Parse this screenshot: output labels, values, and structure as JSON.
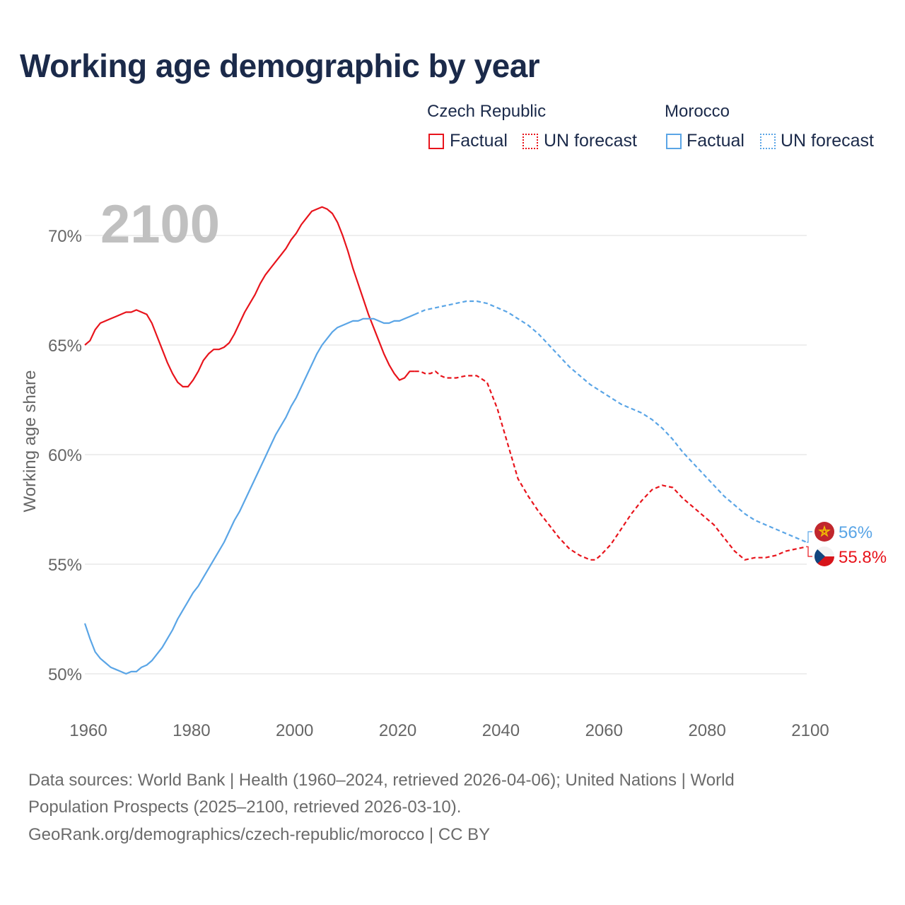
{
  "title": "Working age demographic by year",
  "legend": {
    "groups": [
      {
        "name": "Czech Republic",
        "color": "#e8141c",
        "factual_label": "Factual",
        "forecast_label": "UN forecast"
      },
      {
        "name": "Morocco",
        "color": "#5aa5e6",
        "factual_label": "Factual",
        "forecast_label": "UN forecast"
      }
    ]
  },
  "colors": {
    "czech": "#e8141c",
    "morocco": "#5aa5e6",
    "grid": "#e4e4e4",
    "tick": "#666666",
    "year_overlay": "#c0c0c0"
  },
  "chart_data": {
    "type": "line",
    "title": "Working age demographic by year",
    "xlabel": "",
    "ylabel": "Working age share",
    "xlim": [
      1960,
      2100
    ],
    "ylim": [
      48.5,
      71.5
    ],
    "x_ticks": [
      1960,
      1980,
      2000,
      2020,
      2040,
      2060,
      2080,
      2100
    ],
    "x_tick_labels": [
      "1960",
      "1980",
      "2000",
      "2020",
      "2040",
      "2060",
      "2080",
      "2100"
    ],
    "y_ticks": [
      50,
      55,
      60,
      65,
      70
    ],
    "y_tick_labels": [
      "50%",
      "55%",
      "60%",
      "65%",
      "70%"
    ],
    "year_overlay": "2100",
    "series": [
      {
        "name": "Czech Republic",
        "color": "#e8141c",
        "factual": {
          "x": [
            1960,
            1961,
            1962,
            1963,
            1964,
            1965,
            1966,
            1967,
            1968,
            1969,
            1970,
            1971,
            1972,
            1973,
            1974,
            1975,
            1976,
            1977,
            1978,
            1979,
            1980,
            1981,
            1982,
            1983,
            1984,
            1985,
            1986,
            1987,
            1988,
            1989,
            1990,
            1991,
            1992,
            1993,
            1994,
            1995,
            1996,
            1997,
            1998,
            1999,
            2000,
            2001,
            2002,
            2003,
            2004,
            2005,
            2006,
            2007,
            2008,
            2009,
            2010,
            2011,
            2012,
            2013,
            2014,
            2015,
            2016,
            2017,
            2018,
            2019,
            2020,
            2021,
            2022,
            2023,
            2024
          ],
          "y": [
            65.0,
            65.2,
            65.7,
            66.0,
            66.1,
            66.2,
            66.3,
            66.4,
            66.5,
            66.5,
            66.6,
            66.5,
            66.4,
            66.0,
            65.4,
            64.8,
            64.2,
            63.7,
            63.3,
            63.1,
            63.1,
            63.4,
            63.8,
            64.3,
            64.6,
            64.8,
            64.8,
            64.9,
            65.1,
            65.5,
            66.0,
            66.5,
            66.9,
            67.3,
            67.8,
            68.2,
            68.5,
            68.8,
            69.1,
            69.4,
            69.8,
            70.1,
            70.5,
            70.8,
            71.1,
            71.2,
            71.3,
            71.2,
            71.0,
            70.6,
            70.0,
            69.3,
            68.5,
            67.8,
            67.1,
            66.4,
            65.8,
            65.2,
            64.6,
            64.1,
            63.7,
            63.4,
            63.5,
            63.8,
            63.8
          ]
        },
        "forecast": {
          "x": [
            2024,
            2025,
            2026,
            2027,
            2028,
            2029,
            2030,
            2032,
            2034,
            2036,
            2038,
            2040,
            2042,
            2044,
            2046,
            2048,
            2050,
            2052,
            2054,
            2056,
            2058,
            2059,
            2060,
            2062,
            2064,
            2066,
            2068,
            2070,
            2072,
            2074,
            2076,
            2078,
            2080,
            2082,
            2084,
            2086,
            2088,
            2090,
            2092,
            2094,
            2096,
            2098,
            2100
          ],
          "y": [
            63.8,
            63.8,
            63.7,
            63.7,
            63.8,
            63.6,
            63.5,
            63.5,
            63.6,
            63.6,
            63.3,
            62.1,
            60.5,
            58.9,
            58.1,
            57.4,
            56.8,
            56.2,
            55.7,
            55.4,
            55.2,
            55.2,
            55.4,
            55.9,
            56.6,
            57.3,
            57.9,
            58.4,
            58.6,
            58.5,
            58.0,
            57.6,
            57.2,
            56.8,
            56.2,
            55.6,
            55.2,
            55.3,
            55.3,
            55.4,
            55.6,
            55.7,
            55.8
          ]
        },
        "end_label": "55.8%",
        "end_value": 55.8
      },
      {
        "name": "Morocco",
        "color": "#5aa5e6",
        "factual": {
          "x": [
            1960,
            1961,
            1962,
            1963,
            1964,
            1965,
            1966,
            1967,
            1968,
            1969,
            1970,
            1971,
            1972,
            1973,
            1974,
            1975,
            1976,
            1977,
            1978,
            1979,
            1980,
            1981,
            1982,
            1983,
            1984,
            1985,
            1986,
            1987,
            1988,
            1989,
            1990,
            1991,
            1992,
            1993,
            1994,
            1995,
            1996,
            1997,
            1998,
            1999,
            2000,
            2001,
            2002,
            2003,
            2004,
            2005,
            2006,
            2007,
            2008,
            2009,
            2010,
            2011,
            2012,
            2013,
            2014,
            2015,
            2016,
            2017,
            2018,
            2019,
            2020,
            2021,
            2022,
            2023,
            2024
          ],
          "y": [
            52.3,
            51.6,
            51.0,
            50.7,
            50.5,
            50.3,
            50.2,
            50.1,
            50.0,
            50.1,
            50.1,
            50.3,
            50.4,
            50.6,
            50.9,
            51.2,
            51.6,
            52.0,
            52.5,
            52.9,
            53.3,
            53.7,
            54.0,
            54.4,
            54.8,
            55.2,
            55.6,
            56.0,
            56.5,
            57.0,
            57.4,
            57.9,
            58.4,
            58.9,
            59.4,
            59.9,
            60.4,
            60.9,
            61.3,
            61.7,
            62.2,
            62.6,
            63.1,
            63.6,
            64.1,
            64.6,
            65.0,
            65.3,
            65.6,
            65.8,
            65.9,
            66.0,
            66.1,
            66.1,
            66.2,
            66.2,
            66.2,
            66.1,
            66.0,
            66.0,
            66.1,
            66.1,
            66.2,
            66.3,
            66.4
          ]
        },
        "forecast": {
          "x": [
            2024,
            2026,
            2028,
            2030,
            2032,
            2034,
            2036,
            2038,
            2040,
            2042,
            2044,
            2046,
            2048,
            2050,
            2052,
            2054,
            2056,
            2058,
            2060,
            2062,
            2064,
            2066,
            2068,
            2070,
            2072,
            2074,
            2076,
            2078,
            2080,
            2082,
            2084,
            2086,
            2088,
            2090,
            2092,
            2094,
            2096,
            2098,
            2100
          ],
          "y": [
            66.4,
            66.6,
            66.7,
            66.8,
            66.9,
            67.0,
            67.0,
            66.9,
            66.7,
            66.5,
            66.2,
            65.9,
            65.5,
            65.0,
            64.5,
            64.0,
            63.6,
            63.2,
            62.9,
            62.6,
            62.3,
            62.1,
            61.9,
            61.6,
            61.2,
            60.7,
            60.1,
            59.6,
            59.1,
            58.6,
            58.1,
            57.7,
            57.3,
            57.0,
            56.8,
            56.6,
            56.4,
            56.2,
            56.0
          ]
        },
        "end_label": "56%",
        "end_value": 56.0
      }
    ]
  },
  "sources": {
    "line1": "Data sources: World Bank | Health (1960–2024, retrieved 2026-04-06); United Nations | World",
    "line2": "Population Prospects (2025–2100, retrieved 2026-03-10).",
    "line3": "GeoRank.org/demographics/czech-republic/morocco | CC BY"
  }
}
